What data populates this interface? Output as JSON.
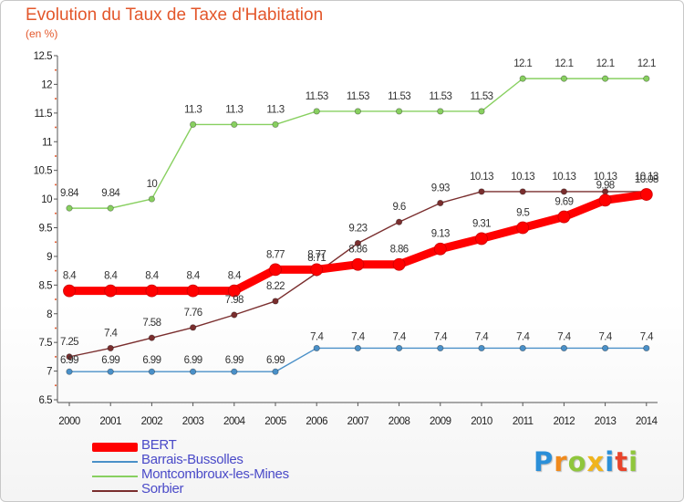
{
  "chart_data": {
    "type": "line",
    "title": "Evolution du Taux de Taxe d'Habitation",
    "ylabel": "(en %)",
    "xlabel": "",
    "x": [
      "2000",
      "2001",
      "2002",
      "2003",
      "2004",
      "2005",
      "2006",
      "2007",
      "2008",
      "2009",
      "2010",
      "2011",
      "2012",
      "2013",
      "2014"
    ],
    "ylim": [
      6.5,
      12.5
    ],
    "yticks": [
      "6.5",
      "7",
      "7.5",
      "8",
      "8.5",
      "9",
      "9.5",
      "10",
      "10.5",
      "11",
      "11.5",
      "12",
      "12.5"
    ],
    "grid": false,
    "legend_position": "bottom-left",
    "series": [
      {
        "name": "BERT",
        "color": "#ff0000",
        "values": [
          8.4,
          8.4,
          8.4,
          8.4,
          8.4,
          8.77,
          8.77,
          8.86,
          8.86,
          9.13,
          9.31,
          9.5,
          9.69,
          9.98,
          10.08
        ],
        "labels": [
          "8.4",
          "8.4",
          "8.4",
          "8.4",
          "8.4",
          "8.77",
          "8.77",
          "8.86",
          "8.86",
          "9.13",
          "9.31",
          "9.5",
          "9.69",
          "9.98",
          "10.08"
        ]
      },
      {
        "name": "Barrais-Bussolles",
        "color": "#4a90c8",
        "values": [
          6.99,
          6.99,
          6.99,
          6.99,
          6.99,
          6.99,
          7.4,
          7.4,
          7.4,
          7.4,
          7.4,
          7.4,
          7.4,
          7.4,
          7.4
        ],
        "labels": [
          "6.99",
          "6.99",
          "6.99",
          "6.99",
          "6.99",
          "6.99",
          "7.4",
          "7.4",
          "7.4",
          "7.4",
          "7.4",
          "7.4",
          "7.4",
          "7.4",
          "7.4"
        ]
      },
      {
        "name": "Montcombroux-les-Mines",
        "color": "#88d060",
        "values": [
          9.84,
          9.84,
          10,
          11.3,
          11.3,
          11.3,
          11.53,
          11.53,
          11.53,
          11.53,
          11.53,
          12.1,
          12.1,
          12.1,
          12.1
        ],
        "labels": [
          "9.84",
          "9.84",
          "10",
          "11.3",
          "11.3",
          "11.3",
          "11.53",
          "11.53",
          "11.53",
          "11.53",
          "11.53",
          "12.1",
          "12.1",
          "12.1",
          "12.1"
        ]
      },
      {
        "name": "Sorbier",
        "color": "#7a2e2e",
        "values": [
          7.25,
          7.4,
          7.58,
          7.76,
          7.98,
          8.22,
          8.71,
          9.23,
          9.6,
          9.93,
          10.13,
          10.13,
          10.13,
          10.13,
          10.13
        ],
        "labels": [
          "7.25",
          "7.4",
          "7.58",
          "7.76",
          "7.98",
          "8.22",
          "8.71",
          "9.23",
          "9.6",
          "9.93",
          "10.13",
          "10.13",
          "10.13",
          "10.13",
          "10.13"
        ]
      }
    ]
  },
  "logo": {
    "letters": [
      "P",
      "r",
      "o",
      "x",
      "i",
      "t",
      "i"
    ],
    "colors": [
      "#2b8fd8",
      "#f08a1c",
      "#8fc63c",
      "#f0b41c",
      "#2b8fd8",
      "#e8432a",
      "#8fc63c"
    ]
  }
}
